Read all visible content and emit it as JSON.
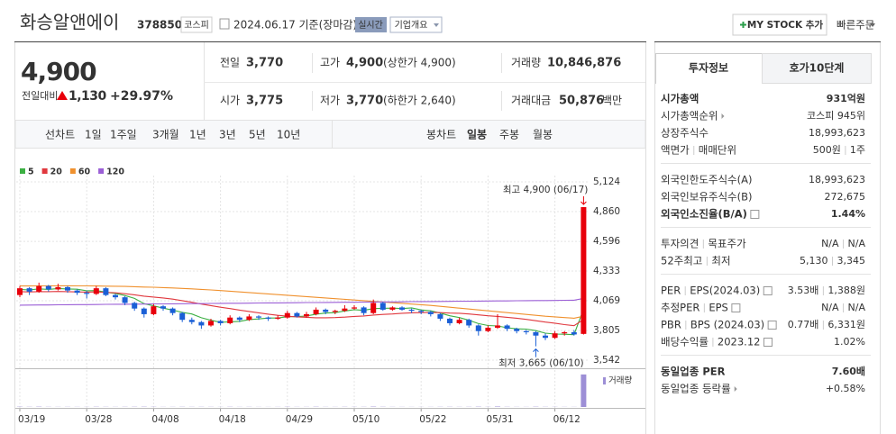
{
  "header": {
    "name": "화승알앤에이",
    "code": "378850",
    "market": "코스피",
    "date": "2024.06.17 기준(장마감)",
    "realtime": "실시간",
    "company_info": "기업개요",
    "mystock": "MY STOCK 추가",
    "quick_order": "빠른주문"
  },
  "quote": {
    "price": "4,900",
    "change_label": "전일대비",
    "change": "1,130",
    "change_pct": "+29.97%",
    "prev_label": "전일",
    "prev": "3,770",
    "high_label": "고가",
    "high": "4,900",
    "high_limit": "(상한가 4,900)",
    "volume_label": "거래량",
    "volume": "10,846,876",
    "open_label": "시가",
    "open": "3,775",
    "low_label": "저가",
    "low": "3,770",
    "low_limit": "(하한가 2,640)",
    "amount_label": "거래대금",
    "amount": "50,876",
    "amount_unit": "백만"
  },
  "toolbar": {
    "line_label": "선차트",
    "line_items": [
      "1일",
      "1주일",
      "3개월",
      "1년",
      "3년",
      "5년",
      "10년"
    ],
    "candle_label": "봉차트",
    "candle_items": [
      "일봉",
      "주봉",
      "월봉"
    ],
    "selected": "일봉"
  },
  "chart_data": {
    "type": "candlestick",
    "categories": [
      "03/19",
      null,
      null,
      null,
      null,
      null,
      null,
      "03/28",
      null,
      null,
      null,
      null,
      null,
      null,
      "04/08",
      null,
      null,
      null,
      null,
      null,
      null,
      "04/18",
      null,
      null,
      null,
      null,
      null,
      null,
      "04/29",
      null,
      null,
      null,
      null,
      null,
      null,
      "05/10",
      null,
      null,
      null,
      null,
      null,
      null,
      "05/22",
      null,
      null,
      null,
      null,
      null,
      null,
      "05/31",
      null,
      null,
      null,
      null,
      null,
      null,
      "06/12",
      null,
      null,
      null
    ],
    "open": [
      4120,
      4180,
      4150,
      4200,
      4170,
      4190,
      4160,
      4140,
      4130,
      4180,
      4120,
      4100,
      4050,
      4000,
      3950,
      4020,
      4000,
      3960,
      3900,
      3880,
      3850,
      3890,
      3870,
      3920,
      3900,
      3930,
      3920,
      3910,
      3920,
      3960,
      3930,
      3950,
      3990,
      3970,
      3980,
      4000,
      4010,
      3960,
      4050,
      3990,
      4010,
      3990,
      3980,
      3970,
      3950,
      3910,
      3870,
      3900,
      3850,
      3800,
      3830,
      3850,
      3820,
      3800,
      3790,
      3760,
      3740,
      3780,
      3790,
      3775
    ],
    "high": [
      4200,
      4190,
      4230,
      4210,
      4220,
      4200,
      4170,
      4160,
      4200,
      4190,
      4130,
      4110,
      4060,
      4010,
      4040,
      4030,
      4010,
      3970,
      3920,
      3890,
      3910,
      3900,
      3940,
      3930,
      3950,
      3940,
      3930,
      3940,
      3980,
      3970,
      3970,
      4010,
      4000,
      3990,
      4030,
      4030,
      4020,
      4080,
      4060,
      4020,
      4020,
      4000,
      3990,
      3980,
      3960,
      3920,
      3920,
      3910,
      3860,
      3850,
      3950,
      3860,
      3830,
      3810,
      3800,
      3780,
      3800,
      3800,
      3810,
      4900
    ],
    "low": [
      4100,
      4120,
      4140,
      4150,
      4160,
      4140,
      4120,
      4090,
      4120,
      4110,
      4080,
      4030,
      3980,
      3920,
      3940,
      3980,
      3940,
      3880,
      3860,
      3820,
      3840,
      3850,
      3860,
      3880,
      3890,
      3900,
      3890,
      3900,
      3910,
      3920,
      3920,
      3940,
      3950,
      3950,
      3970,
      3990,
      3940,
      3950,
      3980,
      3980,
      3980,
      3960,
      3950,
      3930,
      3890,
      3850,
      3860,
      3830,
      3760,
      3790,
      3820,
      3800,
      3780,
      3770,
      3665,
      3720,
      3730,
      3760,
      3760,
      3770
    ],
    "close": [
      4180,
      4150,
      4200,
      4170,
      4190,
      4160,
      4140,
      4130,
      4180,
      4120,
      4100,
      4050,
      4000,
      3950,
      4020,
      4000,
      3960,
      3900,
      3880,
      3850,
      3890,
      3870,
      3920,
      3900,
      3930,
      3920,
      3910,
      3920,
      3960,
      3930,
      3950,
      3990,
      3970,
      3980,
      4000,
      4010,
      3960,
      4050,
      3990,
      4010,
      3990,
      3980,
      3970,
      3950,
      3910,
      3870,
      3900,
      3850,
      3800,
      3830,
      3850,
      3820,
      3800,
      3790,
      3760,
      3740,
      3780,
      3790,
      3770,
      4900
    ],
    "up_color": "#e8000b",
    "down_color": "#1a5fd6",
    "series": [
      {
        "name": "5",
        "color": "#3cb043",
        "values": [
          4170,
          4165,
          4175,
          4170,
          4178,
          4174,
          4172,
          4158,
          4160,
          4146,
          4134,
          4116,
          4090,
          4044,
          4024,
          4004,
          3986,
          3966,
          3952,
          3918,
          3896,
          3878,
          3882,
          3886,
          3902,
          3908,
          3916,
          3916,
          3928,
          3928,
          3934,
          3950,
          3960,
          3964,
          3978,
          3990,
          3984,
          4000,
          4002,
          4004,
          4000,
          4006,
          3988,
          3980,
          3960,
          3936,
          3920,
          3896,
          3866,
          3850,
          3846,
          3830,
          3820,
          3818,
          3804,
          3782,
          3774,
          3772,
          3768,
          3996
        ]
      },
      {
        "name": "20",
        "color": "#e0383e",
        "values": [
          4150,
          4148,
          4150,
          4150,
          4152,
          4150,
          4148,
          4146,
          4148,
          4144,
          4140,
          4132,
          4122,
          4110,
          4102,
          4094,
          4084,
          4070,
          4056,
          4040,
          4026,
          4012,
          4000,
          3986,
          3974,
          3962,
          3950,
          3940,
          3932,
          3926,
          3922,
          3918,
          3918,
          3920,
          3924,
          3930,
          3934,
          3942,
          3948,
          3952,
          3958,
          3962,
          3964,
          3966,
          3964,
          3960,
          3958,
          3952,
          3944,
          3936,
          3930,
          3922,
          3914,
          3904,
          3892,
          3880,
          3870,
          3858,
          3848,
          3902
        ]
      },
      {
        "name": "60",
        "color": "#f0912e",
        "values": [
          4200,
          4200,
          4201,
          4201,
          4202,
          4202,
          4201,
          4201,
          4200,
          4199,
          4198,
          4196,
          4194,
          4191,
          4189,
          4186,
          4183,
          4179,
          4175,
          4170,
          4165,
          4160,
          4154,
          4148,
          4142,
          4136,
          4130,
          4124,
          4118,
          4112,
          4106,
          4100,
          4094,
          4088,
          4082,
          4076,
          4070,
          4064,
          4058,
          4052,
          4046,
          4040,
          4034,
          4028,
          4020,
          4012,
          4004,
          3996,
          3988,
          3980,
          3972,
          3964,
          3956,
          3948,
          3940,
          3932,
          3926,
          3920,
          3914,
          3932
        ]
      },
      {
        "name": "120",
        "color": "#9b5fd6",
        "values": [
          4030,
          4031,
          4032,
          4032,
          4033,
          4034,
          4035,
          4035,
          4036,
          4037,
          4038,
          4038,
          4039,
          4040,
          4041,
          4041,
          4042,
          4043,
          4044,
          4044,
          4045,
          4046,
          4047,
          4047,
          4048,
          4049,
          4050,
          4050,
          4051,
          4052,
          4053,
          4053,
          4054,
          4055,
          4056,
          4056,
          4057,
          4058,
          4059,
          4059,
          4060,
          4061,
          4062,
          4062,
          4063,
          4064,
          4065,
          4065,
          4066,
          4067,
          4068,
          4068,
          4069,
          4070,
          4071,
          4071,
          4072,
          4073,
          4074,
          4090
        ]
      }
    ],
    "ylim": [
      3542,
      5124
    ],
    "yticks": [
      {
        "value": 3542,
        "label": "3,542"
      },
      {
        "value": 3805,
        "label": "3,805"
      },
      {
        "value": 4069,
        "label": "4,069"
      },
      {
        "value": 4333,
        "label": "4,333"
      },
      {
        "value": 4596,
        "label": "4,596"
      },
      {
        "value": 4860,
        "label": "4,860"
      },
      {
        "value": 5124,
        "label": "5,124"
      }
    ],
    "grid": true,
    "high_annotation": "최고 4,900 (06/17)",
    "low_annotation": "최저 3,665 (06/10)",
    "volume": {
      "name": "거래량",
      "color": "#9d8fd6",
      "ylim": [
        0,
        12000000
      ],
      "values": [
        85000,
        62000,
        98000,
        54000,
        47000,
        51000,
        43000,
        39000,
        76000,
        58000,
        44000,
        61000,
        72000,
        88000,
        69000,
        41000,
        45000,
        63000,
        52000,
        57000,
        49000,
        38000,
        66000,
        42000,
        51000,
        36000,
        33000,
        40000,
        71000,
        45000,
        48000,
        83000,
        46000,
        39000,
        64000,
        52000,
        58000,
        121000,
        67000,
        44000,
        42000,
        37000,
        35000,
        41000,
        56000,
        62000,
        48000,
        59000,
        94000,
        53000,
        146000,
        61000,
        47000,
        39000,
        88000,
        57000,
        52000,
        43000,
        38000,
        10846876
      ]
    }
  },
  "side": {
    "tabs": [
      "투자정보",
      "호가10단계"
    ],
    "sections": [
      [
        {
          "label": "시가총액",
          "value": "931억원",
          "bold": true
        },
        {
          "label": "시가총액순위",
          "value": "코스피 945위",
          "icon": "arrow"
        },
        {
          "label": "상장주식수",
          "value": "18,993,623"
        },
        {
          "label": [
            "액면가",
            "매매단위"
          ],
          "value": [
            "500원",
            "1주"
          ]
        }
      ],
      [
        {
          "label": "외국인한도주식수(A)",
          "value": "18,993,623"
        },
        {
          "label": "외국인보유주식수(B)",
          "value": "272,675"
        },
        {
          "label": "외국인소진율(B/A)",
          "value": "1.44%",
          "bold": true,
          "icon": "info"
        }
      ],
      [
        {
          "label": [
            "투자의견",
            "목표주가"
          ],
          "value": [
            "N/A",
            "N/A"
          ]
        },
        {
          "label": [
            "52주최고",
            "최저"
          ],
          "value": [
            "5,130",
            "3,345"
          ]
        }
      ],
      [
        {
          "label": [
            "PER",
            "EPS(2024.03)"
          ],
          "value": [
            "3.53배",
            "1,388원"
          ],
          "icon": "info"
        },
        {
          "label": [
            "추정PER",
            "EPS"
          ],
          "value": [
            "N/A",
            "N/A"
          ],
          "icon": "info"
        },
        {
          "label": [
            "PBR",
            "BPS (2024.03)"
          ],
          "value": [
            "0.77배",
            "6,331원"
          ],
          "icon": "info"
        },
        {
          "label": [
            "배당수익률",
            "2023.12"
          ],
          "value": "1.02%",
          "icon": "info"
        }
      ],
      [
        {
          "label": "동일업종 PER",
          "value": "7.60배",
          "bold": true
        },
        {
          "label": "동일업종 등락률",
          "value": "+0.58%",
          "icon": "arrow",
          "color": "#e8000b"
        }
      ]
    ]
  }
}
